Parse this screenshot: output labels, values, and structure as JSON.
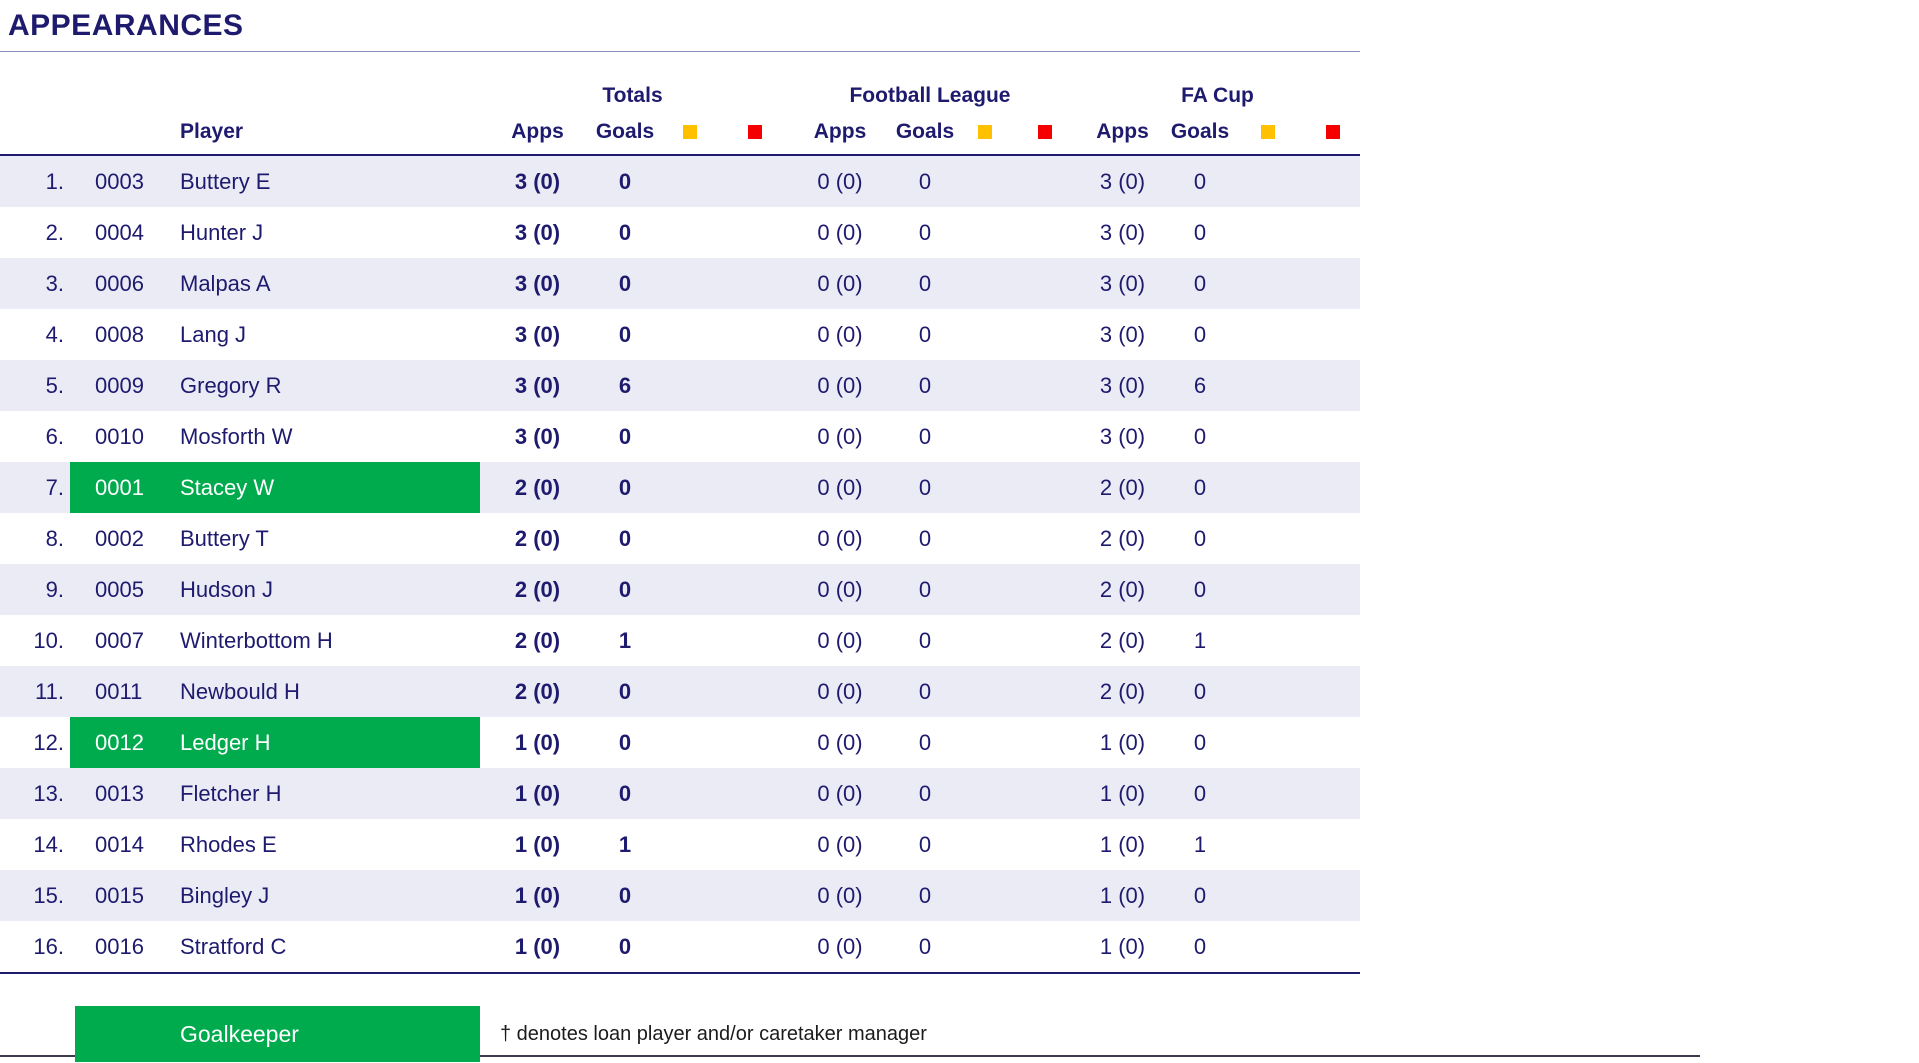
{
  "page": {
    "title": "APPEARANCES"
  },
  "colors": {
    "navy_text": "#1e1a6e",
    "row_stripe": "#ebebf6",
    "goalkeeper_green": "#00ab4e",
    "yellow_card": "#ffc000",
    "red_card": "#f50000"
  },
  "table": {
    "groups": {
      "totals": "Totals",
      "football_league": "Football League",
      "fa_cup": "FA Cup"
    },
    "headers": {
      "player": "Player",
      "apps": "Apps",
      "goals": "Goals"
    },
    "icons": {
      "yellow_card": "yellow-card",
      "red_card": "red-card"
    },
    "rows": [
      {
        "rank": "1.",
        "id": "0003",
        "player": "Buttery E",
        "goalkeeper": false,
        "totals_apps": "3 (0)",
        "totals_goals": "0",
        "totals_yellow": "",
        "totals_red": "",
        "fl_apps": "0 (0)",
        "fl_goals": "0",
        "fl_yellow": "",
        "fl_red": "",
        "fa_apps": "3 (0)",
        "fa_goals": "0",
        "fa_yellow": "",
        "fa_red": ""
      },
      {
        "rank": "2.",
        "id": "0004",
        "player": "Hunter J",
        "goalkeeper": false,
        "totals_apps": "3 (0)",
        "totals_goals": "0",
        "totals_yellow": "",
        "totals_red": "",
        "fl_apps": "0 (0)",
        "fl_goals": "0",
        "fl_yellow": "",
        "fl_red": "",
        "fa_apps": "3 (0)",
        "fa_goals": "0",
        "fa_yellow": "",
        "fa_red": ""
      },
      {
        "rank": "3.",
        "id": "0006",
        "player": "Malpas A",
        "goalkeeper": false,
        "totals_apps": "3 (0)",
        "totals_goals": "0",
        "totals_yellow": "",
        "totals_red": "",
        "fl_apps": "0 (0)",
        "fl_goals": "0",
        "fl_yellow": "",
        "fl_red": "",
        "fa_apps": "3 (0)",
        "fa_goals": "0",
        "fa_yellow": "",
        "fa_red": ""
      },
      {
        "rank": "4.",
        "id": "0008",
        "player": "Lang J",
        "goalkeeper": false,
        "totals_apps": "3 (0)",
        "totals_goals": "0",
        "totals_yellow": "",
        "totals_red": "",
        "fl_apps": "0 (0)",
        "fl_goals": "0",
        "fl_yellow": "",
        "fl_red": "",
        "fa_apps": "3 (0)",
        "fa_goals": "0",
        "fa_yellow": "",
        "fa_red": ""
      },
      {
        "rank": "5.",
        "id": "0009",
        "player": "Gregory R",
        "goalkeeper": false,
        "totals_apps": "3 (0)",
        "totals_goals": "6",
        "totals_yellow": "",
        "totals_red": "",
        "fl_apps": "0 (0)",
        "fl_goals": "0",
        "fl_yellow": "",
        "fl_red": "",
        "fa_apps": "3 (0)",
        "fa_goals": "6",
        "fa_yellow": "",
        "fa_red": ""
      },
      {
        "rank": "6.",
        "id": "0010",
        "player": "Mosforth W",
        "goalkeeper": false,
        "totals_apps": "3 (0)",
        "totals_goals": "0",
        "totals_yellow": "",
        "totals_red": "",
        "fl_apps": "0 (0)",
        "fl_goals": "0",
        "fl_yellow": "",
        "fl_red": "",
        "fa_apps": "3 (0)",
        "fa_goals": "0",
        "fa_yellow": "",
        "fa_red": ""
      },
      {
        "rank": "7.",
        "id": "0001",
        "player": "Stacey W",
        "goalkeeper": true,
        "totals_apps": "2 (0)",
        "totals_goals": "0",
        "totals_yellow": "",
        "totals_red": "",
        "fl_apps": "0 (0)",
        "fl_goals": "0",
        "fl_yellow": "",
        "fl_red": "",
        "fa_apps": "2 (0)",
        "fa_goals": "0",
        "fa_yellow": "",
        "fa_red": ""
      },
      {
        "rank": "8.",
        "id": "0002",
        "player": "Buttery T",
        "goalkeeper": false,
        "totals_apps": "2 (0)",
        "totals_goals": "0",
        "totals_yellow": "",
        "totals_red": "",
        "fl_apps": "0 (0)",
        "fl_goals": "0",
        "fl_yellow": "",
        "fl_red": "",
        "fa_apps": "2 (0)",
        "fa_goals": "0",
        "fa_yellow": "",
        "fa_red": ""
      },
      {
        "rank": "9.",
        "id": "0005",
        "player": "Hudson J",
        "goalkeeper": false,
        "totals_apps": "2 (0)",
        "totals_goals": "0",
        "totals_yellow": "",
        "totals_red": "",
        "fl_apps": "0 (0)",
        "fl_goals": "0",
        "fl_yellow": "",
        "fl_red": "",
        "fa_apps": "2 (0)",
        "fa_goals": "0",
        "fa_yellow": "",
        "fa_red": ""
      },
      {
        "rank": "10.",
        "id": "0007",
        "player": "Winterbottom H",
        "goalkeeper": false,
        "totals_apps": "2 (0)",
        "totals_goals": "1",
        "totals_yellow": "",
        "totals_red": "",
        "fl_apps": "0 (0)",
        "fl_goals": "0",
        "fl_yellow": "",
        "fl_red": "",
        "fa_apps": "2 (0)",
        "fa_goals": "1",
        "fa_yellow": "",
        "fa_red": ""
      },
      {
        "rank": "11.",
        "id": "0011",
        "player": "Newbould H",
        "goalkeeper": false,
        "totals_apps": "2 (0)",
        "totals_goals": "0",
        "totals_yellow": "",
        "totals_red": "",
        "fl_apps": "0 (0)",
        "fl_goals": "0",
        "fl_yellow": "",
        "fl_red": "",
        "fa_apps": "2 (0)",
        "fa_goals": "0",
        "fa_yellow": "",
        "fa_red": ""
      },
      {
        "rank": "12.",
        "id": "0012",
        "player": "Ledger H",
        "goalkeeper": true,
        "totals_apps": "1 (0)",
        "totals_goals": "0",
        "totals_yellow": "",
        "totals_red": "",
        "fl_apps": "0 (0)",
        "fl_goals": "0",
        "fl_yellow": "",
        "fl_red": "",
        "fa_apps": "1 (0)",
        "fa_goals": "0",
        "fa_yellow": "",
        "fa_red": ""
      },
      {
        "rank": "13.",
        "id": "0013",
        "player": "Fletcher H",
        "goalkeeper": false,
        "totals_apps": "1 (0)",
        "totals_goals": "0",
        "totals_yellow": "",
        "totals_red": "",
        "fl_apps": "0 (0)",
        "fl_goals": "0",
        "fl_yellow": "",
        "fl_red": "",
        "fa_apps": "1 (0)",
        "fa_goals": "0",
        "fa_yellow": "",
        "fa_red": ""
      },
      {
        "rank": "14.",
        "id": "0014",
        "player": "Rhodes E",
        "goalkeeper": false,
        "totals_apps": "1 (0)",
        "totals_goals": "1",
        "totals_yellow": "",
        "totals_red": "",
        "fl_apps": "0 (0)",
        "fl_goals": "0",
        "fl_yellow": "",
        "fl_red": "",
        "fa_apps": "1 (0)",
        "fa_goals": "1",
        "fa_yellow": "",
        "fa_red": ""
      },
      {
        "rank": "15.",
        "id": "0015",
        "player": "Bingley J",
        "goalkeeper": false,
        "totals_apps": "1 (0)",
        "totals_goals": "0",
        "totals_yellow": "",
        "totals_red": "",
        "fl_apps": "0 (0)",
        "fl_goals": "0",
        "fl_yellow": "",
        "fl_red": "",
        "fa_apps": "1 (0)",
        "fa_goals": "0",
        "fa_yellow": "",
        "fa_red": ""
      },
      {
        "rank": "16.",
        "id": "0016",
        "player": "Stratford C",
        "goalkeeper": false,
        "totals_apps": "1 (0)",
        "totals_goals": "0",
        "totals_yellow": "",
        "totals_red": "",
        "fl_apps": "0 (0)",
        "fl_goals": "0",
        "fl_yellow": "",
        "fl_red": "",
        "fa_apps": "1 (0)",
        "fa_goals": "0",
        "fa_yellow": "",
        "fa_red": ""
      }
    ]
  },
  "legend": {
    "goalkeeper_label": "Goalkeeper",
    "note": "† denotes loan player and/or caretaker manager"
  }
}
